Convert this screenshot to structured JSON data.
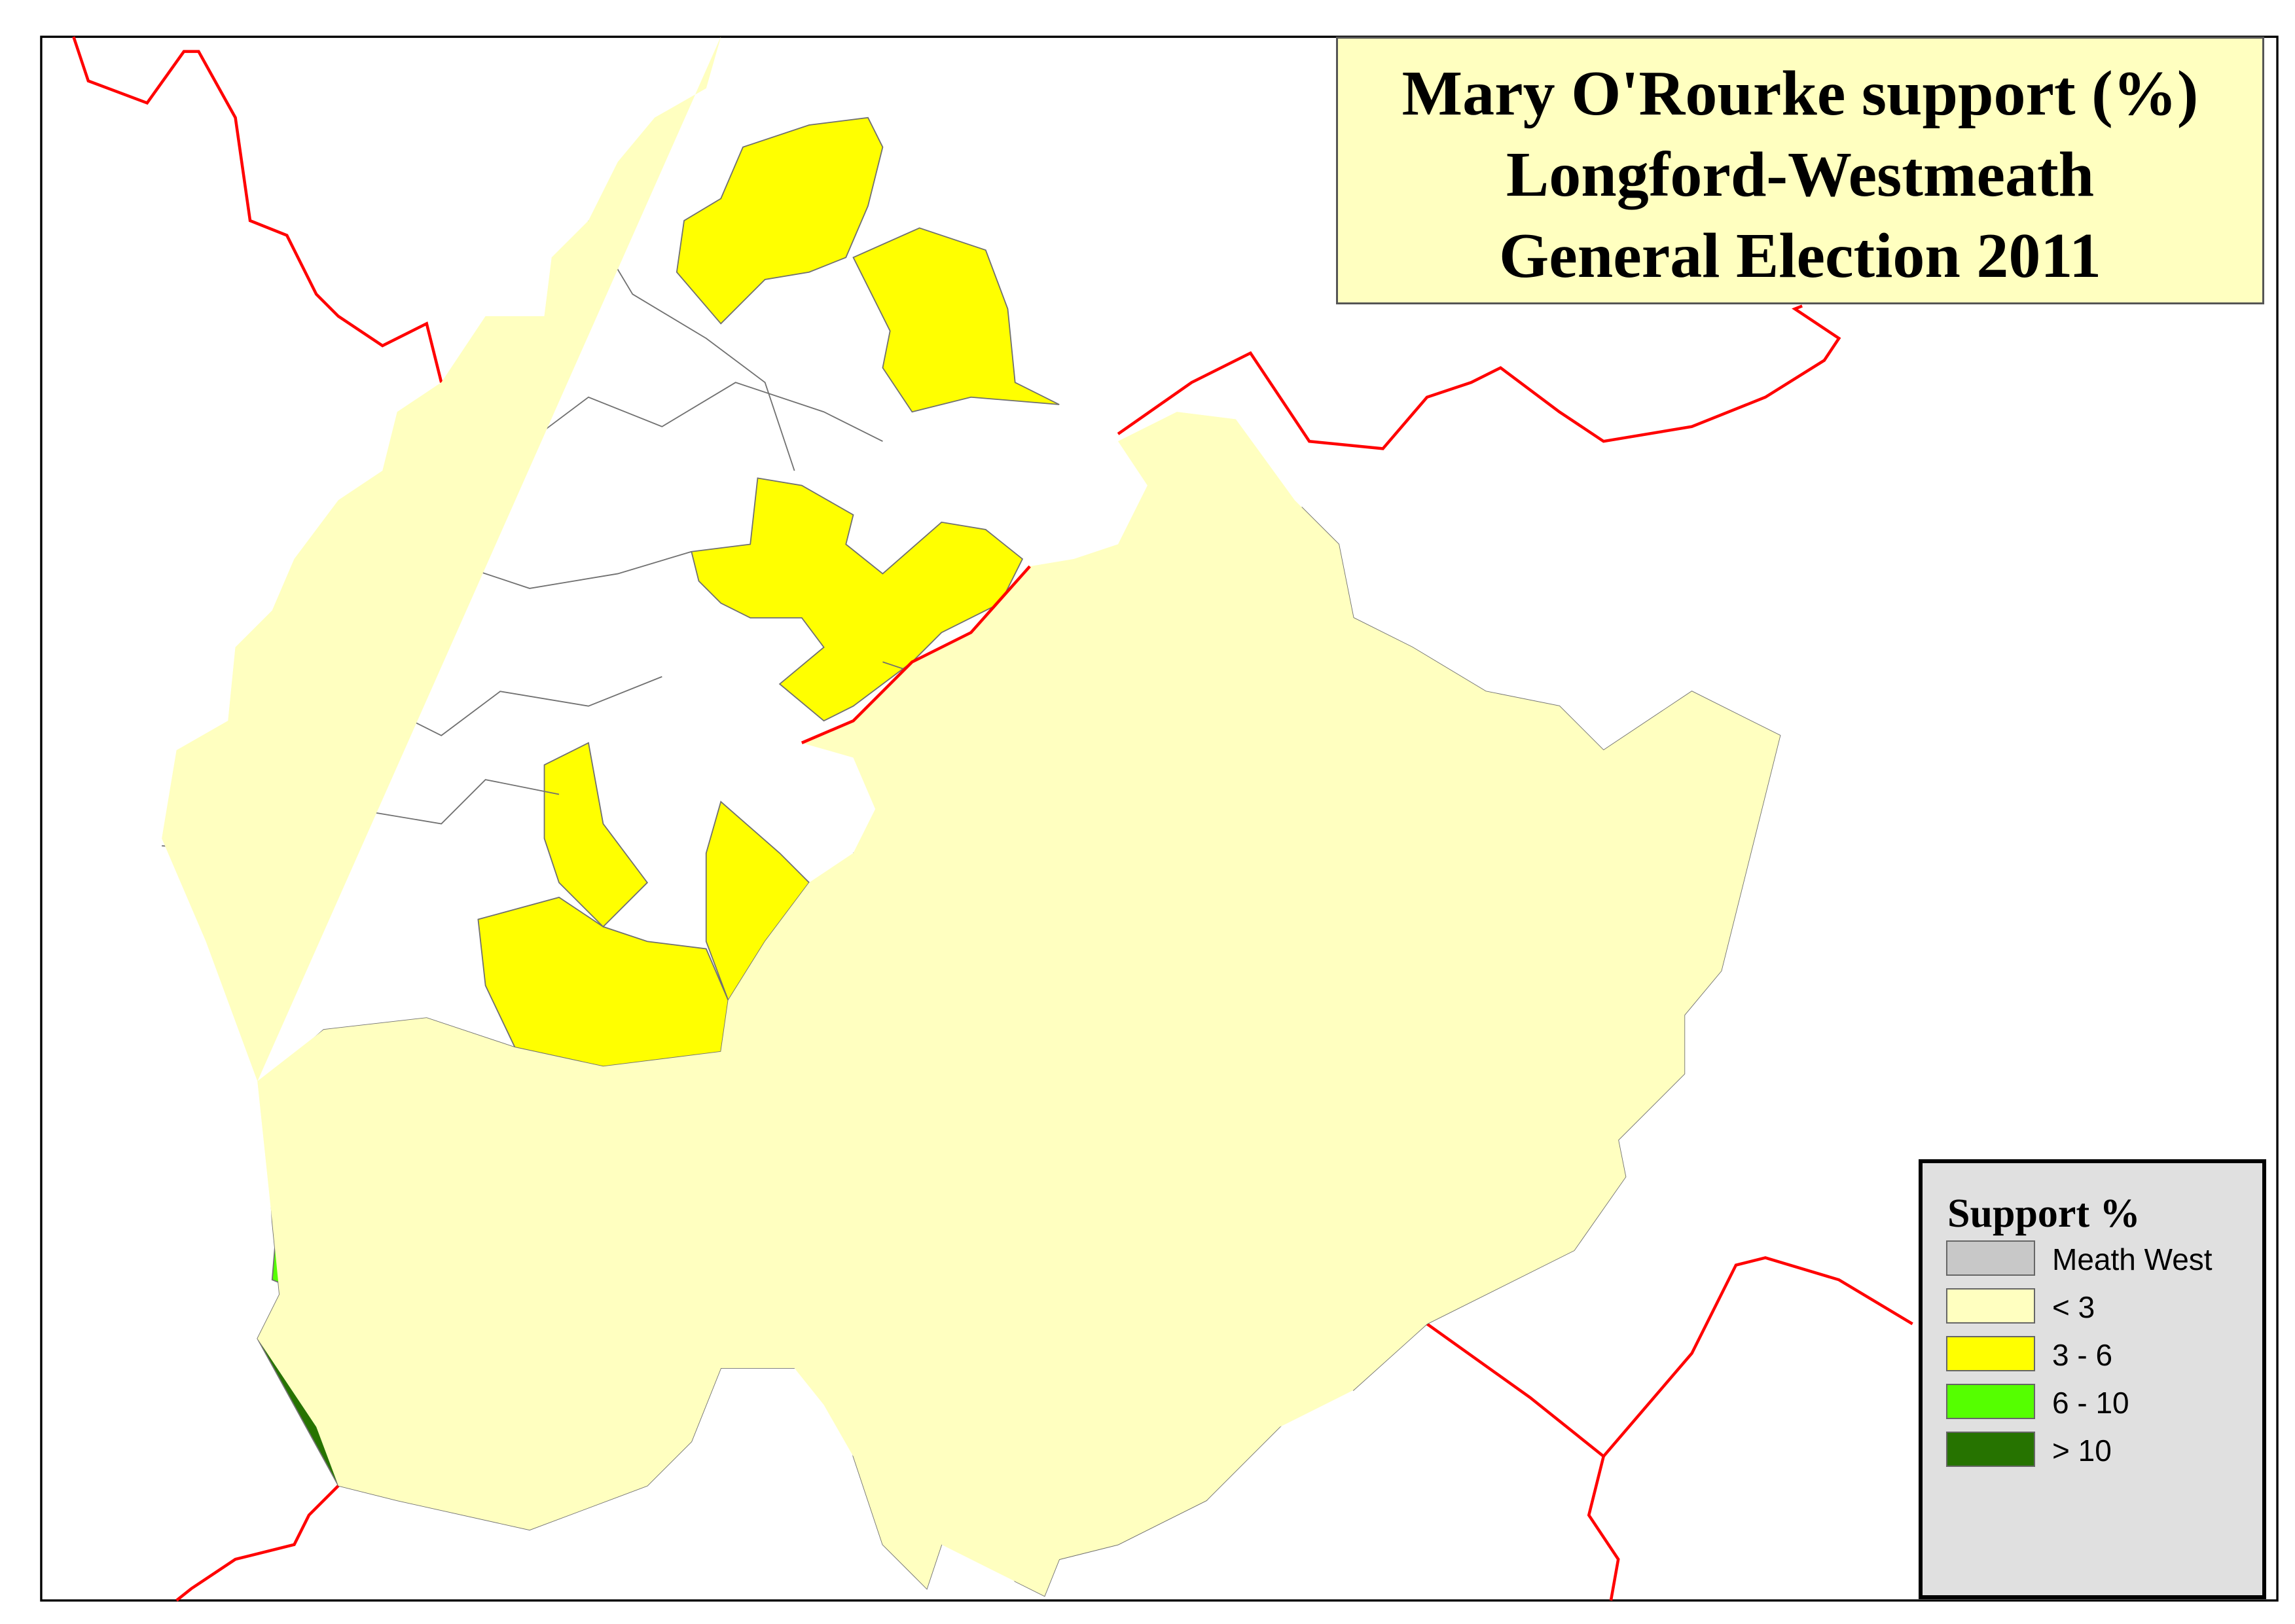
{
  "title": {
    "lines": [
      "Mary O'Rourke support (%)",
      "Longford-Westmeath",
      "General Election 2011"
    ]
  },
  "legend": {
    "title": "Support %",
    "items": [
      {
        "label": "Meath West",
        "color": "#C8C8C8"
      },
      {
        "label": "< 3",
        "color": "#FFFFC0"
      },
      {
        "label": "3 - 6",
        "color": "#FFFF00"
      },
      {
        "label": "6 - 10",
        "color": "#55FF00"
      },
      {
        "label": "> 10",
        "color": "#267300"
      }
    ]
  },
  "colors": {
    "constituency_boundary": "#FF0000",
    "ed_boundary": "#707070",
    "meath_west": "#C8C8C8",
    "lt3": "#FFFFC0",
    "3to6": "#FFFF00",
    "6to10": "#55FF00",
    "gt10": "#267300"
  }
}
